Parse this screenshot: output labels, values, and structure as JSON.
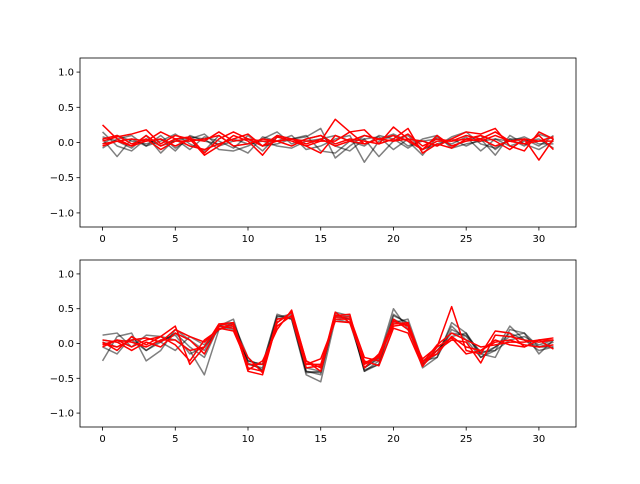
{
  "chart_data": [
    {
      "type": "line",
      "title": "",
      "xlabel": "",
      "ylabel": "",
      "xlim": [
        -1.55,
        32.55
      ],
      "ylim": [
        -1.2,
        1.2
      ],
      "grid": false,
      "xticks": [
        0,
        5,
        10,
        15,
        20,
        25,
        30
      ],
      "xtick_labels": [
        "0",
        "5",
        "10",
        "15",
        "20",
        "25",
        "30"
      ],
      "yticks": [
        -1.0,
        -0.5,
        0.0,
        0.5,
        1.0
      ],
      "ytick_labels": [
        "−1.0",
        "−0.5",
        "0.0",
        "0.5",
        "1.0"
      ],
      "x": [
        0,
        1,
        2,
        3,
        4,
        5,
        6,
        7,
        8,
        9,
        10,
        11,
        12,
        13,
        14,
        15,
        16,
        17,
        18,
        19,
        20,
        21,
        22,
        23,
        24,
        25,
        26,
        27,
        28,
        29,
        30,
        31
      ],
      "series": [
        {
          "color": "#000000",
          "values": [
            0.05,
            -0.2,
            0.05,
            -0.05,
            0.1,
            -0.08,
            0.05,
            0.12,
            -0.05,
            0.02,
            0.05,
            -0.12,
            0.1,
            0.05,
            0.08,
            0.2,
            -0.22,
            -0.05,
            0.1,
            0.05,
            0.12,
            0.02,
            -0.18,
            0.08,
            -0.05,
            0.02,
            0.1,
            -0.1,
            0.05,
            0.05,
            -0.05,
            0.1
          ]
        },
        {
          "color": "#000000",
          "values": [
            0.15,
            -0.05,
            -0.12,
            0.05,
            -0.05,
            0.02,
            0.08,
            0.05,
            -0.1,
            -0.12,
            -0.05,
            0.05,
            0.15,
            -0.02,
            0.05,
            0.1,
            -0.05,
            -0.12,
            0.05,
            0.08,
            -0.1,
            0.05,
            0.02,
            -0.05,
            0.08,
            0.15,
            -0.02,
            -0.08,
            0.05,
            -0.05,
            0.12,
            0.05
          ]
        },
        {
          "color": "#000000",
          "values": [
            -0.08,
            0.05,
            0.1,
            -0.05,
            0.02,
            0.12,
            -0.02,
            -0.12,
            0.1,
            -0.05,
            -0.15,
            0.08,
            0.02,
            0.1,
            -0.1,
            -0.05,
            0.05,
            0.1,
            -0.28,
            0.02,
            0.1,
            -0.05,
            0.02,
            0.05,
            -0.02,
            0.08,
            -0.12,
            0.05,
            -0.05,
            0.02,
            0.05,
            -0.08
          ]
        },
        {
          "color": "#000000",
          "values": [
            0.08,
            0.02,
            -0.08,
            0.1,
            -0.15,
            0.05,
            -0.1,
            0.08,
            0.02,
            -0.08,
            0.1,
            -0.05,
            -0.02,
            0.05,
            0.1,
            -0.12,
            -0.15,
            0.02,
            0.05,
            -0.2,
            0.02,
            0.1,
            -0.1,
            -0.02,
            0.05,
            -0.05,
            0.05,
            -0.18,
            0.1,
            -0.02,
            -0.1,
            0.02
          ]
        },
        {
          "color": "#000000",
          "values": [
            -0.02,
            0.1,
            0.02,
            -0.02,
            0.05,
            -0.12,
            0.1,
            0.02,
            -0.02,
            0.05,
            -0.02,
            0.02,
            -0.05,
            -0.08,
            0.02,
            0.05,
            0.1,
            0.02,
            -0.05,
            0.1,
            0.05,
            -0.08,
            0.05,
            0.1,
            -0.08,
            -0.02,
            0.02,
            0.05,
            0.02,
            0.08,
            -0.02,
            -0.02
          ]
        },
        {
          "color": "#ff0000",
          "values": [
            0.25,
            0.05,
            -0.05,
            0.1,
            -0.05,
            0.05,
            0.08,
            -0.15,
            0.05,
            0.15,
            0.05,
            -0.05,
            0.1,
            0.05,
            -0.05,
            0.02,
            0.33,
            0.15,
            0.18,
            -0.02,
            0.05,
            0.2,
            -0.15,
            -0.02,
            -0.08,
            0.05,
            0.1,
            0.02,
            -0.1,
            0.05,
            -0.25,
            0.05
          ]
        },
        {
          "color": "#ff0000",
          "values": [
            0.02,
            0.08,
            0.12,
            0.18,
            -0.02,
            0.1,
            0.05,
            -0.18,
            -0.05,
            0.1,
            0.02,
            -0.18,
            0.08,
            0.02,
            -0.05,
            -0.15,
            0.1,
            0.02,
            -0.02,
            0.05,
            0.02,
            0.05,
            0.02,
            -0.05,
            0.05,
            0.15,
            0.12,
            0.2,
            -0.05,
            -0.12,
            0.15,
            0.05
          ]
        },
        {
          "color": "#ff0000",
          "values": [
            -0.05,
            0.02,
            -0.05,
            0.02,
            0.15,
            0.05,
            -0.05,
            -0.1,
            -0.02,
            0.05,
            0.12,
            -0.05,
            0.02,
            -0.05,
            0.05,
            0.1,
            -0.02,
            0.05,
            0.02,
            -0.02,
            0.22,
            0.05,
            -0.1,
            0.1,
            -0.05,
            0.02,
            0.05,
            0.15,
            0.02,
            -0.02,
            0.02,
            0.08
          ]
        },
        {
          "color": "#ff0000",
          "values": [
            0.05,
            0.1,
            -0.02,
            0.05,
            -0.1,
            0.02,
            0.02,
            0.05,
            0.1,
            -0.05,
            -0.02,
            0.05,
            0.02,
            0.05,
            -0.02,
            0.05,
            -0.05,
            0.02,
            0.1,
            0.05,
            0.02,
            0.12,
            -0.05,
            0.05,
            0.02,
            0.1,
            0.05,
            -0.05,
            0.02,
            -0.02,
            0.1,
            -0.1
          ]
        },
        {
          "color": "#ff0000",
          "values": [
            -0.02,
            0.02,
            0.05,
            0.02,
            0.05,
            -0.05,
            0.05,
            0.02,
            0.15,
            0.02,
            0.05,
            0.02,
            0.02,
            0.05,
            0.02,
            0.02,
            0.02,
            0.15,
            -0.02,
            0.05,
            0.1,
            0.02,
            -0.1,
            0.02,
            0.02,
            0.05,
            0.02,
            0.1,
            0.02,
            0.05,
            0.02,
            0.02
          ]
        }
      ]
    },
    {
      "type": "line",
      "title": "",
      "xlabel": "",
      "ylabel": "",
      "xlim": [
        -1.55,
        32.55
      ],
      "ylim": [
        -1.2,
        1.2
      ],
      "grid": false,
      "xticks": [
        0,
        5,
        10,
        15,
        20,
        25,
        30
      ],
      "xtick_labels": [
        "0",
        "5",
        "10",
        "15",
        "20",
        "25",
        "30"
      ],
      "yticks": [
        -1.0,
        -0.5,
        0.0,
        0.5,
        1.0
      ],
      "ytick_labels": [
        "−1.0",
        "−0.5",
        "0.0",
        "0.5",
        "1.0"
      ],
      "x": [
        0,
        1,
        2,
        3,
        4,
        5,
        6,
        7,
        8,
        9,
        10,
        11,
        12,
        13,
        14,
        15,
        16,
        17,
        18,
        19,
        20,
        21,
        22,
        23,
        24,
        25,
        26,
        27,
        28,
        29,
        30,
        31
      ],
      "series": [
        {
          "color": "#000000",
          "values": [
            0.12,
            0.15,
            -0.05,
            0.12,
            0.1,
            0.05,
            -0.1,
            -0.45,
            0.2,
            0.3,
            -0.25,
            -0.3,
            0.4,
            0.35,
            -0.45,
            -0.55,
            0.35,
            0.3,
            -0.35,
            -0.2,
            0.5,
            0.2,
            -0.25,
            -0.1,
            0.1,
            0.15,
            -0.15,
            -0.2,
            0.2,
            0.15,
            -0.15,
            0.05
          ]
        },
        {
          "color": "#000000",
          "values": [
            -0.25,
            0.1,
            0.15,
            -0.25,
            -0.1,
            0.2,
            0.05,
            -0.1,
            0.25,
            0.35,
            -0.3,
            -0.35,
            0.35,
            0.4,
            -0.4,
            -0.45,
            0.4,
            0.35,
            -0.4,
            -0.3,
            0.4,
            0.3,
            -0.3,
            -0.15,
            0.25,
            0.05,
            -0.2,
            -0.1,
            0.25,
            0.05,
            -0.05,
            0.02
          ]
        },
        {
          "color": "#000000",
          "values": [
            -0.05,
            -0.15,
            0.1,
            -0.1,
            0.02,
            0.15,
            -0.05,
            -0.2,
            0.25,
            0.3,
            -0.2,
            -0.4,
            0.3,
            0.45,
            -0.35,
            -0.4,
            0.45,
            0.4,
            -0.4,
            -0.25,
            0.35,
            0.25,
            -0.35,
            -0.2,
            0.2,
            0.1,
            -0.15,
            -0.05,
            0.15,
            0.05,
            -0.1,
            -0.05
          ]
        },
        {
          "color": "#000000",
          "values": [
            0.05,
            0.02,
            0.05,
            -0.1,
            0.05,
            0.12,
            -0.15,
            -0.05,
            0.2,
            0.25,
            -0.25,
            -0.3,
            0.42,
            0.35,
            -0.42,
            -0.4,
            0.38,
            0.35,
            -0.38,
            -0.3,
            0.3,
            0.35,
            -0.25,
            -0.2,
            0.3,
            0.15,
            -0.2,
            -0.05,
            0.1,
            0.15,
            -0.05,
            -0.05
          ]
        },
        {
          "color": "#000000",
          "values": [
            0.02,
            -0.05,
            0.05,
            0.08,
            0.02,
            -0.1,
            0.1,
            -0.02,
            0.25,
            0.2,
            -0.28,
            -0.38,
            0.38,
            0.42,
            -0.4,
            -0.42,
            0.42,
            0.38,
            -0.35,
            -0.22,
            0.42,
            0.28,
            -0.3,
            -0.1,
            0.15,
            0.12,
            -0.12,
            -0.1,
            0.05,
            0.1,
            -0.02,
            0.05
          ]
        },
        {
          "color": "#ff0000",
          "values": [
            0.02,
            -0.1,
            0.1,
            -0.02,
            0.1,
            0.25,
            -0.3,
            -0.05,
            0.28,
            0.25,
            -0.38,
            -0.25,
            0.2,
            0.48,
            -0.25,
            -0.35,
            0.45,
            0.3,
            -0.25,
            -0.32,
            0.22,
            0.15,
            -0.33,
            -0.05,
            0.53,
            -0.1,
            -0.15,
            0.18,
            0.15,
            -0.05,
            0.05,
            0.08
          ]
        },
        {
          "color": "#ff0000",
          "values": [
            -0.05,
            0.05,
            -0.05,
            0.05,
            0.1,
            -0.02,
            -0.25,
            0.05,
            0.2,
            0.28,
            -0.4,
            -0.45,
            0.3,
            0.45,
            -0.25,
            -0.4,
            0.4,
            0.42,
            -0.35,
            -0.15,
            0.32,
            0.25,
            -0.32,
            -0.1,
            0.05,
            0.02,
            -0.28,
            0.12,
            0.1,
            0.05,
            0.02,
            0.05
          ]
        },
        {
          "color": "#ff0000",
          "values": [
            0.05,
            0.02,
            -0.1,
            0.02,
            -0.05,
            0.15,
            0.05,
            -0.15,
            0.25,
            0.22,
            -0.2,
            -0.42,
            0.3,
            0.45,
            -0.3,
            -0.3,
            0.35,
            0.35,
            -0.3,
            -0.2,
            0.28,
            0.3,
            -0.25,
            -0.15,
            0.1,
            -0.05,
            -0.1,
            0.05,
            -0.02,
            -0.05,
            0.05,
            -0.08
          ]
        },
        {
          "color": "#ff0000",
          "values": [
            -0.02,
            0.05,
            0.02,
            -0.05,
            0.05,
            0.05,
            -0.1,
            -0.05,
            0.28,
            0.3,
            -0.35,
            -0.4,
            0.35,
            0.38,
            -0.35,
            -0.32,
            0.38,
            0.38,
            -0.2,
            -0.25,
            0.35,
            0.2,
            -0.22,
            -0.05,
            0.08,
            -0.15,
            -0.1,
            0.02,
            0.05,
            -0.02,
            -0.05,
            -0.02
          ]
        },
        {
          "color": "#ff0000",
          "values": [
            0.0,
            -0.05,
            0.05,
            0.08,
            0.02,
            0.2,
            0.1,
            0.02,
            0.22,
            0.18,
            -0.3,
            -0.3,
            0.25,
            0.4,
            -0.3,
            -0.22,
            0.32,
            0.3,
            -0.28,
            -0.18,
            0.25,
            0.28,
            -0.28,
            -0.02,
            0.15,
            0.05,
            -0.05,
            -0.02,
            0.02,
            0.02,
            0.05,
            0.05
          ]
        }
      ]
    }
  ]
}
